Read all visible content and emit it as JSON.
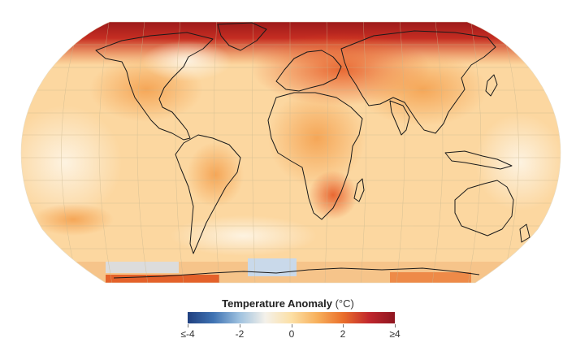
{
  "map": {
    "projection": "Robinson",
    "description_colors": {
      "arctic_hot": "#8f1418",
      "hot": "#d9481f",
      "warm": "#f08a3b",
      "mild": "#f7b867",
      "slight": "#fde3ad",
      "neutral": "#f7f4ee",
      "cool": "#c9d9ea",
      "cold": "#2d5c9a",
      "coastline": "#1a1a1a",
      "graticule": "#c8b78f"
    }
  },
  "legend": {
    "title": "Temperature Anomaly",
    "unit": "(°C)",
    "ticks": [
      {
        "label": "≤-4",
        "value": -4
      },
      {
        "label": "-2",
        "value": -2
      },
      {
        "label": "0",
        "value": 0
      },
      {
        "label": "2",
        "value": 2
      },
      {
        "label": "≥4",
        "value": 4
      }
    ],
    "colorbar_stops": [
      "#1f3f7f",
      "#3f73b3",
      "#9ec1df",
      "#f4f1ea",
      "#fce0a6",
      "#f7b05c",
      "#ea6f2b",
      "#c1272d",
      "#8e1520"
    ]
  }
}
